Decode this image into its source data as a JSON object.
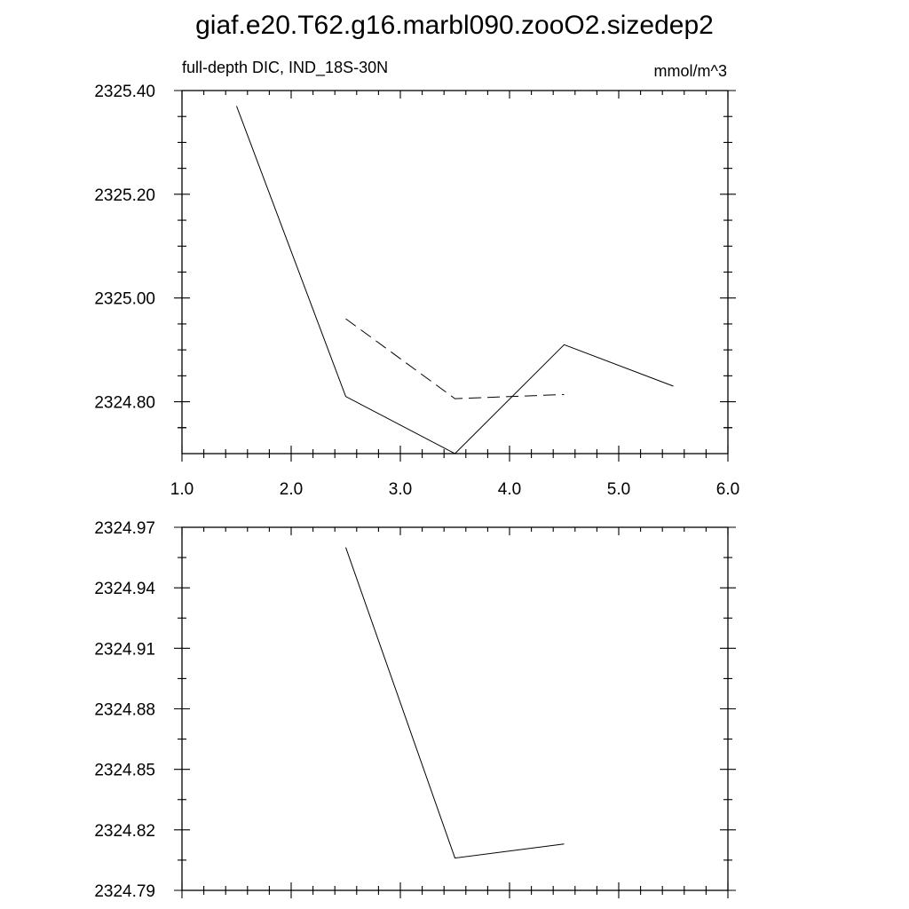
{
  "title": "giaf.e20.T62.g16.marbl090.zooO2.sizedep2",
  "colors": {
    "line": "#000000",
    "background": "#ffffff"
  },
  "chart_data": [
    {
      "type": "line",
      "subtitle_left": "full-depth DIC, IND_18S-30N",
      "subtitle_right": "mmol/m^3",
      "xlim": [
        1.0,
        6.0
      ],
      "ylim": [
        2324.7,
        2325.4
      ],
      "x_ticks": [
        1.0,
        2.0,
        3.0,
        4.0,
        5.0,
        6.0
      ],
      "x_tick_labels": [
        "1.0",
        "2.0",
        "3.0",
        "4.0",
        "5.0",
        "6.0"
      ],
      "y_ticks": [
        2324.8,
        2325.0,
        2325.2,
        2325.4
      ],
      "y_tick_labels": [
        "2324.80",
        "2325.00",
        "2325.20",
        "2325.40"
      ],
      "grid": false,
      "series": [
        {
          "style": "solid",
          "x": [
            1.5,
            2.5,
            3.5,
            4.5,
            5.5
          ],
          "y": [
            2325.37,
            2324.81,
            2324.7,
            2324.91,
            2324.83
          ]
        },
        {
          "style": "dashed",
          "x": [
            2.5,
            3.5,
            4.5
          ],
          "y": [
            2324.96,
            2324.806,
            2324.814
          ]
        }
      ]
    },
    {
      "type": "line",
      "xlim": [
        1.0,
        6.0
      ],
      "ylim": [
        2324.79,
        2324.97
      ],
      "x_ticks": [
        1.0,
        2.0,
        3.0,
        4.0,
        5.0,
        6.0
      ],
      "y_ticks": [
        2324.79,
        2324.82,
        2324.85,
        2324.88,
        2324.91,
        2324.94,
        2324.97
      ],
      "y_tick_labels": [
        "2324.79",
        "2324.82",
        "2324.85",
        "2324.88",
        "2324.91",
        "2324.94",
        "2324.97"
      ],
      "grid": false,
      "series": [
        {
          "style": "solid",
          "x": [
            2.5,
            3.5,
            4.5
          ],
          "y": [
            2324.96,
            2324.806,
            2324.813
          ]
        }
      ]
    }
  ]
}
